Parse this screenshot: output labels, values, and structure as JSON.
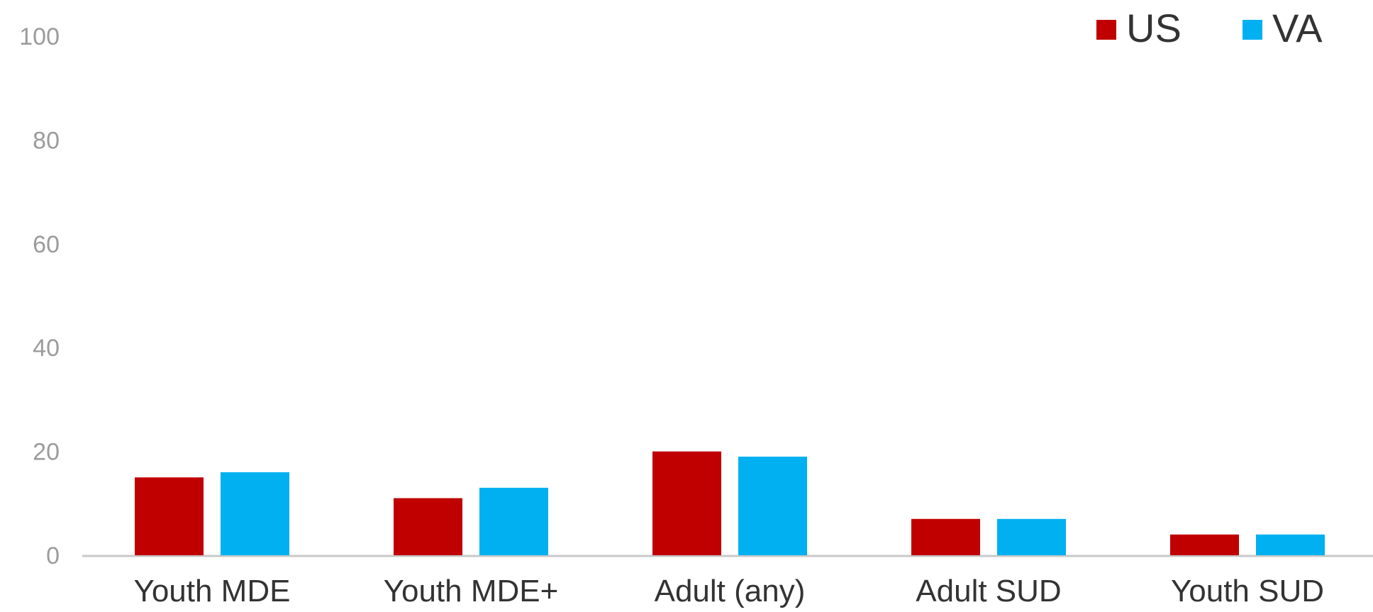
{
  "chart_data": {
    "type": "bar",
    "title": "",
    "xlabel": "",
    "ylabel": "",
    "categories": [
      "Youth MDE",
      "Youth MDE+",
      "Adult (any)",
      "Adult SUD",
      "Youth SUD"
    ],
    "series": [
      {
        "name": "US",
        "values": [
          15,
          11,
          20,
          7,
          4
        ]
      },
      {
        "name": "VA",
        "values": [
          16,
          13,
          19,
          7,
          4
        ]
      }
    ],
    "ylim": [
      0,
      100
    ],
    "yticks": [
      "0",
      "20",
      "40",
      "60",
      "80",
      "100"
    ],
    "grid": false,
    "legend_position": "top-right",
    "colors": {
      "US": "#C00000",
      "VA": "#00B0F0",
      "axis": "#C8C8C8",
      "ytick_text": "#9B9B9B",
      "xtick_text": "#333333"
    }
  }
}
